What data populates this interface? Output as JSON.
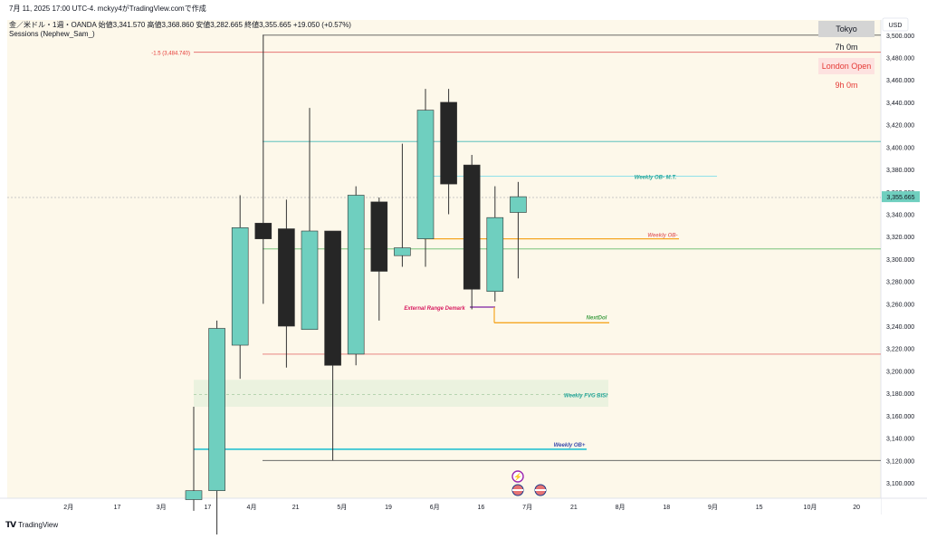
{
  "header": {
    "line1": "7月 11, 2025 17:00 UTC-4.  mckyy4がTradingView.comで作成",
    "line2": "金／米ドル・1週・OANDA  始値3,341.570  高値3,368.860  安値3,282.665  終値3,355.665  +19.050 (+0.57%)",
    "line3": "Sessions (Nephew_Sam_)"
  },
  "currency_button": "USD",
  "footer_brand": "TradingView",
  "colors": {
    "background": "#fdf8ea",
    "bull": "#6fcfbf",
    "bear": "#262626",
    "cyan_line": "#44b7b7",
    "red_line": "#e57373",
    "orange": "#f5a623",
    "green_line": "#66bb6a",
    "blue_line": "#00b7cc",
    "purple": "#7b1fa2",
    "fvg_fill": "#e6f0dc"
  },
  "sessions": {
    "tokyo_label": "Tokyo",
    "tokyo_time": "7h 0m",
    "london_label": "London Open",
    "london_time": "9h 0m"
  },
  "chart_data": {
    "type": "candlestick",
    "price_axis": {
      "min": 3085,
      "max": 3505,
      "ticks": [
        "3,100.000",
        "3,120.000",
        "3,140.000",
        "3,160.000",
        "3,180.000",
        "3,200.000",
        "3,220.000",
        "3,240.000",
        "3,260.000",
        "3,280.000",
        "3,300.000",
        "3,320.000",
        "3,340.000",
        "3,360.000",
        "3,380.000",
        "3,400.000",
        "3,420.000",
        "3,440.000",
        "3,460.000",
        "3,480.000",
        "3,500.000"
      ],
      "tick_values": [
        3100,
        3120,
        3140,
        3160,
        3180,
        3200,
        3220,
        3240,
        3260,
        3280,
        3300,
        3320,
        3340,
        3360,
        3380,
        3400,
        3420,
        3440,
        3460,
        3480,
        3500
      ],
      "current_price_label": "3,355.665",
      "current_price": 3355.665
    },
    "time_axis": {
      "labels": [
        "2月",
        "17",
        "3月",
        "17",
        "4月",
        "21",
        "5月",
        "19",
        "6月",
        "16",
        "7月",
        "21",
        "8月",
        "18",
        "9月",
        "15",
        "10月",
        "20"
      ],
      "label_week_index": [
        -5.4,
        -3.3,
        -1.4,
        0.6,
        2.5,
        4.4,
        6.4,
        8.4,
        10.4,
        12.4,
        14.4,
        16.4,
        18.4,
        20.4,
        22.4,
        24.4,
        26.6,
        28.6
      ]
    },
    "candles": [
      {
        "week": "2025-03-31",
        "o": 3085,
        "h": 3168,
        "l": 3075,
        "c": 3093
      },
      {
        "week": "2025-04-07",
        "o": 3093,
        "h": 3245,
        "l": 3040,
        "c": 3238
      },
      {
        "week": "2025-04-14",
        "o": 3223,
        "h": 3357,
        "l": 3193,
        "c": 3328
      },
      {
        "week": "2025-04-21",
        "o": 3332,
        "h": 3500,
        "l": 3260,
        "c": 3318
      },
      {
        "week": "2025-04-28",
        "o": 3327,
        "h": 3353,
        "l": 3203,
        "c": 3240
      },
      {
        "week": "2025-05-05",
        "o": 3237,
        "h": 3435,
        "l": 3237,
        "c": 3325
      },
      {
        "week": "2025-05-12",
        "o": 3325,
        "h": 3325,
        "l": 3120,
        "c": 3205
      },
      {
        "week": "2025-05-19",
        "o": 3215,
        "h": 3365,
        "l": 3205,
        "c": 3357
      },
      {
        "week": "2025-05-26",
        "o": 3351,
        "h": 3355,
        "l": 3245,
        "c": 3289
      },
      {
        "week": "2025-06-02",
        "o": 3303,
        "h": 3403,
        "l": 3293,
        "c": 3310
      },
      {
        "week": "2025-06-09",
        "o": 3318,
        "h": 3452,
        "l": 3293,
        "c": 3433
      },
      {
        "week": "2025-06-16",
        "o": 3440,
        "h": 3452,
        "l": 3340,
        "c": 3367
      },
      {
        "week": "2025-06-23",
        "o": 3384,
        "h": 3393,
        "l": 3255,
        "c": 3273
      },
      {
        "week": "2025-06-30",
        "o": 3271,
        "h": 3365,
        "l": 3262,
        "c": 3337
      },
      {
        "week": "2025-07-07",
        "o": 3341.57,
        "h": 3368.86,
        "l": 3282.665,
        "c": 3355.665
      }
    ],
    "levels": [
      {
        "label": "-1.5 (3,484.740)",
        "price": 3484.74
      },
      {
        "label": "",
        "price": 3405
      },
      {
        "label": "Weekly OB- M.T.",
        "price": 3374
      },
      {
        "label": "Weekly OB-",
        "price": 3318
      },
      {
        "label": "",
        "price": 3309
      },
      {
        "label": "External Range Demark",
        "price": 3257
      },
      {
        "label": "NextDol",
        "price": 3243
      },
      {
        "label": "",
        "price": 3215
      },
      {
        "label": "Weekly FVG BISI",
        "price": 3179
      },
      {
        "label": "Weekly OB+",
        "price": 3130
      },
      {
        "label": "",
        "price": 3120
      },
      {
        "label": "",
        "price": 3500
      }
    ],
    "fvg_zone": {
      "top": 3192,
      "bottom": 3168
    }
  }
}
